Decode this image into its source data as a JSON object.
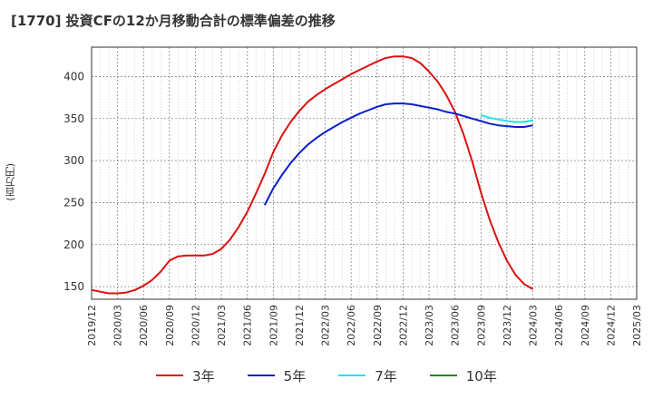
{
  "chart_data": {
    "type": "line",
    "title": "[1770]  投資CFの12か月移動合計の標準偏差の推移",
    "ylabel": "(百万円)",
    "xlabel": "",
    "ylim": [
      135,
      435
    ],
    "yticks": [
      150,
      200,
      250,
      300,
      350,
      400
    ],
    "x_categories": [
      "2019/12",
      "2020/03",
      "2020/06",
      "2020/09",
      "2020/12",
      "2021/03",
      "2021/06",
      "2021/09",
      "2021/12",
      "2022/03",
      "2022/06",
      "2022/09",
      "2022/12",
      "2023/03",
      "2023/06",
      "2023/09",
      "2023/12",
      "2024/03",
      "2024/06",
      "2024/09",
      "2024/12",
      "2025/03"
    ],
    "grid": true,
    "legend_position": "bottom",
    "series": [
      {
        "name": "3年",
        "color": "#dd1111",
        "points": [
          [
            "2019/12",
            146
          ],
          [
            "2020/01",
            144
          ],
          [
            "2020/02",
            142
          ],
          [
            "2020/03",
            142
          ],
          [
            "2020/04",
            143
          ],
          [
            "2020/05",
            146
          ],
          [
            "2020/06",
            151
          ],
          [
            "2020/07",
            158
          ],
          [
            "2020/08",
            168
          ],
          [
            "2020/09",
            181
          ],
          [
            "2020/10",
            186
          ],
          [
            "2020/11",
            187
          ],
          [
            "2020/12",
            187
          ],
          [
            "2021/01",
            187
          ],
          [
            "2021/02",
            189
          ],
          [
            "2021/03",
            195
          ],
          [
            "2021/04",
            206
          ],
          [
            "2021/05",
            221
          ],
          [
            "2021/06",
            239
          ],
          [
            "2021/07",
            261
          ],
          [
            "2021/08",
            284
          ],
          [
            "2021/09",
            310
          ],
          [
            "2021/10",
            330
          ],
          [
            "2021/11",
            346
          ],
          [
            "2021/12",
            359
          ],
          [
            "2022/01",
            370
          ],
          [
            "2022/02",
            378
          ],
          [
            "2022/03",
            385
          ],
          [
            "2022/04",
            391
          ],
          [
            "2022/05",
            397
          ],
          [
            "2022/06",
            403
          ],
          [
            "2022/07",
            408
          ],
          [
            "2022/08",
            413
          ],
          [
            "2022/09",
            418
          ],
          [
            "2022/10",
            422
          ],
          [
            "2022/11",
            424
          ],
          [
            "2022/12",
            424
          ],
          [
            "2023/01",
            422
          ],
          [
            "2023/02",
            416
          ],
          [
            "2023/03",
            406
          ],
          [
            "2023/04",
            394
          ],
          [
            "2023/05",
            378
          ],
          [
            "2023/06",
            358
          ],
          [
            "2023/07",
            331
          ],
          [
            "2023/08",
            299
          ],
          [
            "2023/09",
            262
          ],
          [
            "2023/10",
            230
          ],
          [
            "2023/11",
            203
          ],
          [
            "2023/12",
            181
          ],
          [
            "2024/01",
            164
          ],
          [
            "2024/02",
            153
          ],
          [
            "2024/03",
            147
          ]
        ]
      },
      {
        "name": "5年",
        "color": "#0a1ecc",
        "points": [
          [
            "2021/08",
            247
          ],
          [
            "2021/09",
            267
          ],
          [
            "2021/10",
            283
          ],
          [
            "2021/11",
            297
          ],
          [
            "2021/12",
            309
          ],
          [
            "2022/01",
            319
          ],
          [
            "2022/02",
            327
          ],
          [
            "2022/03",
            334
          ],
          [
            "2022/04",
            340
          ],
          [
            "2022/05",
            346
          ],
          [
            "2022/06",
            351
          ],
          [
            "2022/07",
            356
          ],
          [
            "2022/08",
            360
          ],
          [
            "2022/09",
            364
          ],
          [
            "2022/10",
            367
          ],
          [
            "2022/11",
            368
          ],
          [
            "2022/12",
            368
          ],
          [
            "2023/01",
            367
          ],
          [
            "2023/02",
            365
          ],
          [
            "2023/03",
            363
          ],
          [
            "2023/04",
            361
          ],
          [
            "2023/05",
            358
          ],
          [
            "2023/06",
            356
          ],
          [
            "2023/07",
            353
          ],
          [
            "2023/08",
            350
          ],
          [
            "2023/09",
            347
          ],
          [
            "2023/10",
            344
          ],
          [
            "2023/11",
            342
          ],
          [
            "2023/12",
            341
          ],
          [
            "2024/01",
            340
          ],
          [
            "2024/02",
            340
          ],
          [
            "2024/03",
            342
          ]
        ]
      },
      {
        "name": "7年",
        "color": "#22e0ee",
        "points": [
          [
            "2023/09",
            354
          ],
          [
            "2023/10",
            351
          ],
          [
            "2023/11",
            349
          ],
          [
            "2023/12",
            347
          ],
          [
            "2024/01",
            346
          ],
          [
            "2024/02",
            346
          ],
          [
            "2024/03",
            348
          ]
        ]
      },
      {
        "name": "10年",
        "color": "#228822",
        "points": []
      }
    ]
  }
}
